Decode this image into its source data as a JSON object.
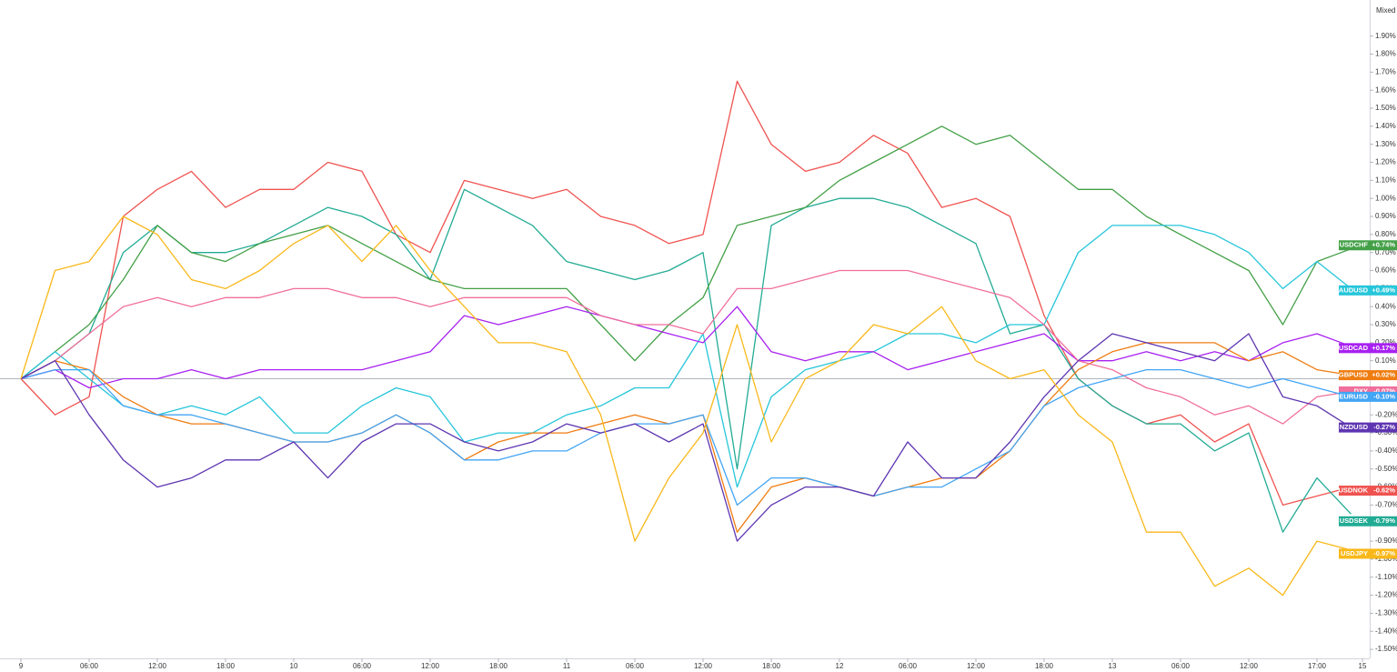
{
  "chart_data": {
    "type": "line",
    "scale_mode": "Mixed",
    "xlim": [
      -1.84,
      118.64
    ],
    "ylim": [
      -1.55,
      2.1
    ],
    "xticks": [
      {
        "value": 0,
        "label": "9"
      },
      {
        "value": 6,
        "label": "06:00"
      },
      {
        "value": 12,
        "label": "12:00"
      },
      {
        "value": 18,
        "label": "18:00"
      },
      {
        "value": 24,
        "label": "10"
      },
      {
        "value": 30,
        "label": "06:00"
      },
      {
        "value": 36,
        "label": "12:00"
      },
      {
        "value": 42,
        "label": "18:00"
      },
      {
        "value": 48,
        "label": "11"
      },
      {
        "value": 54,
        "label": "06:00"
      },
      {
        "value": 60,
        "label": "12:00"
      },
      {
        "value": 66,
        "label": "18:00"
      },
      {
        "value": 72,
        "label": "12"
      },
      {
        "value": 78,
        "label": "06:00"
      },
      {
        "value": 84,
        "label": "12:00"
      },
      {
        "value": 90,
        "label": "18:00"
      },
      {
        "value": 96,
        "label": "13"
      },
      {
        "value": 102,
        "label": "06:00"
      },
      {
        "value": 108,
        "label": "12:00"
      },
      {
        "value": 114,
        "label": "17:00"
      },
      {
        "value": 118,
        "label": "15"
      }
    ],
    "yticks": [
      {
        "value": 1.9,
        "label": "1.90%"
      },
      {
        "value": 1.8,
        "label": "1.80%"
      },
      {
        "value": 1.7,
        "label": "1.70%"
      },
      {
        "value": 1.6,
        "label": "1.60%"
      },
      {
        "value": 1.5,
        "label": "1.50%"
      },
      {
        "value": 1.4,
        "label": "1.40%"
      },
      {
        "value": 1.3,
        "label": "1.30%"
      },
      {
        "value": 1.2,
        "label": "1.20%"
      },
      {
        "value": 1.1,
        "label": "1.10%"
      },
      {
        "value": 1.0,
        "label": "1.00%"
      },
      {
        "value": 0.9,
        "label": "0.90%"
      },
      {
        "value": 0.8,
        "label": "0.80%"
      },
      {
        "value": 0.7,
        "label": "0.70%"
      },
      {
        "value": 0.6,
        "label": "0.60%"
      },
      {
        "value": 0.5,
        "label": "0.50%"
      },
      {
        "value": 0.4,
        "label": "0.40%"
      },
      {
        "value": 0.3,
        "label": "0.30%"
      },
      {
        "value": 0.2,
        "label": "0.20%"
      },
      {
        "value": 0.1,
        "label": "0.10%"
      },
      {
        "value": -0.2,
        "label": "-0.20%"
      },
      {
        "value": -0.3,
        "label": "-0.30%"
      },
      {
        "value": -0.4,
        "label": "-0.40%"
      },
      {
        "value": -0.5,
        "label": "-0.50%"
      },
      {
        "value": -0.6,
        "label": "-0.60%"
      },
      {
        "value": -0.7,
        "label": "-0.70%"
      },
      {
        "value": -0.8,
        "label": "-0.80%"
      },
      {
        "value": -0.9,
        "label": "-0.90%"
      },
      {
        "value": -1.0,
        "label": "-1.00%"
      },
      {
        "value": -1.1,
        "label": "-1.10%"
      },
      {
        "value": -1.2,
        "label": "-1.20%"
      },
      {
        "value": -1.3,
        "label": "-1.30%"
      },
      {
        "value": -1.4,
        "label": "-1.40%"
      },
      {
        "value": -1.5,
        "label": "-1.50%"
      }
    ],
    "x": [
      0,
      3,
      6,
      9,
      12,
      15,
      18,
      21,
      24,
      27,
      30,
      33,
      36,
      39,
      42,
      45,
      48,
      51,
      54,
      57,
      60,
      63,
      66,
      69,
      72,
      75,
      78,
      81,
      84,
      87,
      90,
      93,
      96,
      99,
      102,
      105,
      108,
      111,
      114,
      117
    ],
    "series": [
      {
        "name": "USDNOK",
        "color": "#ef5350",
        "last": {
          "value": -0.62,
          "label": "-0.62%"
        },
        "values": [
          0,
          -0.2,
          -0.1,
          0.9,
          1.05,
          1.15,
          0.95,
          1.05,
          1.05,
          1.2,
          1.15,
          0.8,
          0.7,
          1.1,
          1.05,
          1.0,
          1.05,
          0.9,
          0.85,
          0.75,
          0.8,
          1.65,
          1.3,
          1.15,
          1.2,
          1.35,
          1.25,
          0.95,
          1.0,
          0.9,
          0.35,
          0.0,
          -0.15,
          -0.25,
          -0.2,
          -0.35,
          -0.25,
          -0.7,
          -0.65,
          -0.6
        ]
      },
      {
        "name": "USDSEK",
        "color": "#22ab94",
        "last": {
          "value": -0.79,
          "label": "-0.79%"
        },
        "values": [
          0,
          0.1,
          0.25,
          0.7,
          0.85,
          0.7,
          0.7,
          0.75,
          0.85,
          0.95,
          0.9,
          0.8,
          0.55,
          1.05,
          0.95,
          0.85,
          0.65,
          0.6,
          0.55,
          0.6,
          0.7,
          -0.5,
          0.85,
          0.95,
          1.0,
          1.0,
          0.95,
          0.85,
          0.75,
          0.25,
          0.3,
          0.0,
          -0.15,
          -0.25,
          -0.25,
          -0.4,
          -0.3,
          -0.85,
          -0.55,
          -0.75
        ]
      },
      {
        "name": "USDCHF",
        "color": "#43a047",
        "last": {
          "value": 0.74,
          "label": "+0.74%"
        },
        "values": [
          0,
          0.15,
          0.3,
          0.55,
          0.85,
          0.7,
          0.65,
          0.75,
          0.8,
          0.85,
          0.75,
          0.65,
          0.55,
          0.5,
          0.5,
          0.5,
          0.5,
          0.3,
          0.1,
          0.3,
          0.45,
          0.85,
          0.9,
          0.95,
          1.1,
          1.2,
          1.3,
          1.4,
          1.3,
          1.35,
          1.2,
          1.05,
          1.05,
          0.9,
          0.8,
          0.7,
          0.6,
          0.3,
          0.65,
          0.72
        ]
      },
      {
        "name": "AUDUSD",
        "color": "#26c6da",
        "last": {
          "value": 0.49,
          "label": "+0.49%"
        },
        "values": [
          0,
          0.15,
          0.0,
          -0.15,
          -0.2,
          -0.15,
          -0.2,
          -0.1,
          -0.3,
          -0.3,
          -0.15,
          -0.05,
          -0.1,
          -0.35,
          -0.3,
          -0.3,
          -0.2,
          -0.15,
          -0.05,
          -0.05,
          0.25,
          -0.6,
          -0.1,
          0.05,
          0.1,
          0.15,
          0.25,
          0.25,
          0.2,
          0.3,
          0.3,
          0.7,
          0.85,
          0.85,
          0.85,
          0.8,
          0.7,
          0.5,
          0.65,
          0.5
        ]
      },
      {
        "name": "USDCAD",
        "color": "#a821f0",
        "last": {
          "value": 0.17,
          "label": "+0.17%"
        },
        "values": [
          0,
          0.05,
          -0.05,
          0.0,
          0.0,
          0.05,
          0.0,
          0.05,
          0.05,
          0.05,
          0.05,
          0.1,
          0.15,
          0.35,
          0.3,
          0.35,
          0.4,
          0.35,
          0.3,
          0.25,
          0.2,
          0.4,
          0.15,
          0.1,
          0.15,
          0.15,
          0.05,
          0.1,
          0.15,
          0.2,
          0.25,
          0.1,
          0.1,
          0.15,
          0.1,
          0.15,
          0.1,
          0.2,
          0.25,
          0.18
        ]
      },
      {
        "name": "GBPUSD",
        "color": "#ef7c10",
        "last": {
          "value": 0.02,
          "label": "+0.02%"
        },
        "values": [
          0,
          0.1,
          0.05,
          -0.1,
          -0.2,
          -0.25,
          -0.25,
          -0.3,
          -0.35,
          -0.35,
          -0.3,
          -0.2,
          -0.3,
          -0.45,
          -0.35,
          -0.3,
          -0.3,
          -0.25,
          -0.2,
          -0.25,
          -0.2,
          -0.85,
          -0.6,
          -0.55,
          -0.6,
          -0.65,
          -0.6,
          -0.55,
          -0.55,
          -0.4,
          -0.15,
          0.05,
          0.15,
          0.2,
          0.2,
          0.2,
          0.1,
          0.15,
          0.05,
          0.02
        ]
      },
      {
        "name": "DXY",
        "color": "#f06f9c",
        "last": {
          "value": -0.07,
          "label": "-0.07%"
        },
        "values": [
          0,
          0.1,
          0.25,
          0.4,
          0.45,
          0.4,
          0.45,
          0.45,
          0.5,
          0.5,
          0.45,
          0.45,
          0.4,
          0.45,
          0.45,
          0.45,
          0.45,
          0.35,
          0.3,
          0.3,
          0.25,
          0.5,
          0.5,
          0.55,
          0.6,
          0.6,
          0.6,
          0.55,
          0.5,
          0.45,
          0.3,
          0.1,
          0.05,
          -0.05,
          -0.1,
          -0.2,
          -0.15,
          -0.25,
          -0.1,
          -0.07
        ]
      },
      {
        "name": "EURUSD",
        "color": "#42a5f5",
        "last": {
          "value": -0.1,
          "label": "-0.10%"
        },
        "values": [
          0,
          0.05,
          0.05,
          -0.15,
          -0.2,
          -0.2,
          -0.25,
          -0.3,
          -0.35,
          -0.35,
          -0.3,
          -0.2,
          -0.3,
          -0.45,
          -0.45,
          -0.4,
          -0.4,
          -0.3,
          -0.25,
          -0.25,
          -0.2,
          -0.7,
          -0.55,
          -0.55,
          -0.6,
          -0.65,
          -0.6,
          -0.6,
          -0.5,
          -0.4,
          -0.15,
          -0.05,
          0.0,
          0.05,
          0.05,
          0.0,
          -0.05,
          0.0,
          -0.05,
          -0.1
        ]
      },
      {
        "name": "NZDUSD",
        "color": "#5e35b1",
        "last": {
          "value": -0.27,
          "label": "-0.27%"
        },
        "values": [
          0,
          0.1,
          -0.2,
          -0.45,
          -0.6,
          -0.55,
          -0.45,
          -0.45,
          -0.35,
          -0.55,
          -0.35,
          -0.25,
          -0.25,
          -0.35,
          -0.4,
          -0.35,
          -0.25,
          -0.3,
          -0.25,
          -0.35,
          -0.25,
          -0.9,
          -0.7,
          -0.6,
          -0.6,
          -0.65,
          -0.35,
          -0.55,
          -0.55,
          -0.35,
          -0.1,
          0.1,
          0.25,
          0.2,
          0.15,
          0.1,
          0.25,
          -0.1,
          -0.15,
          -0.27
        ]
      },
      {
        "name": "USDJPY",
        "color": "#f9b81a",
        "last": {
          "value": -0.97,
          "label": "-0.97%"
        },
        "values": [
          0,
          0.6,
          0.65,
          0.9,
          0.8,
          0.55,
          0.5,
          0.6,
          0.75,
          0.85,
          0.65,
          0.85,
          0.6,
          0.4,
          0.2,
          0.2,
          0.15,
          -0.2,
          -0.9,
          -0.55,
          -0.3,
          0.3,
          -0.35,
          0.0,
          0.1,
          0.3,
          0.25,
          0.4,
          0.1,
          0.0,
          0.05,
          -0.2,
          -0.35,
          -0.85,
          -0.85,
          -1.15,
          -1.05,
          -1.2,
          -0.9,
          -0.95
        ]
      }
    ]
  }
}
